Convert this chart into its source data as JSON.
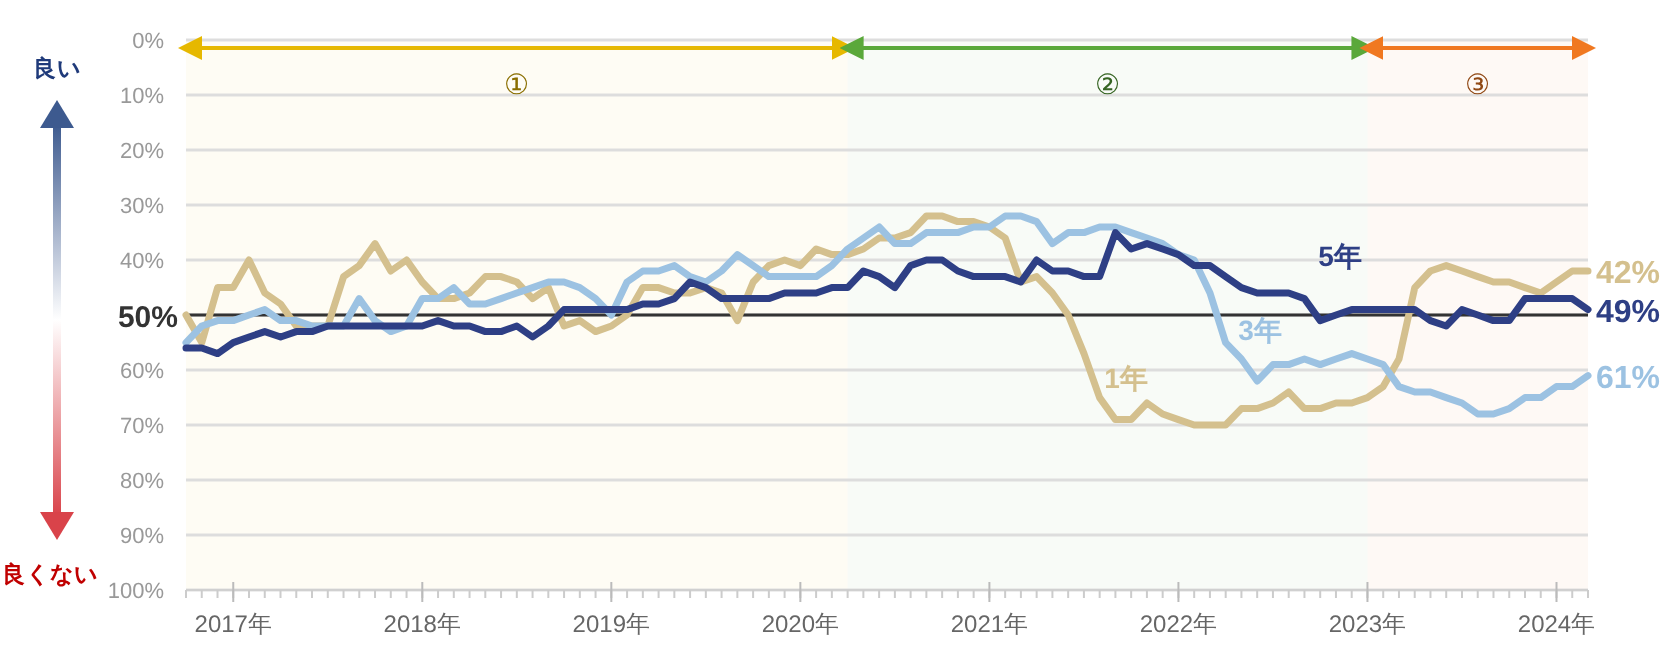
{
  "chart_data": {
    "type": "line",
    "x": [
      "2016-10",
      "2016-11",
      "2016-12",
      "2017-01",
      "2017-02",
      "2017-03",
      "2017-04",
      "2017-05",
      "2017-06",
      "2017-07",
      "2017-08",
      "2017-09",
      "2017-10",
      "2017-11",
      "2017-12",
      "2018-01",
      "2018-02",
      "2018-03",
      "2018-04",
      "2018-05",
      "2018-06",
      "2018-07",
      "2018-08",
      "2018-09",
      "2018-10",
      "2018-11",
      "2018-12",
      "2019-01",
      "2019-02",
      "2019-03",
      "2019-04",
      "2019-05",
      "2019-06",
      "2019-07",
      "2019-08",
      "2019-09",
      "2019-10",
      "2019-11",
      "2019-12",
      "2020-01",
      "2020-02",
      "2020-03",
      "2020-04",
      "2020-05",
      "2020-06",
      "2020-07",
      "2020-08",
      "2020-09",
      "2020-10",
      "2020-11",
      "2020-12",
      "2021-01",
      "2021-02",
      "2021-03",
      "2021-04",
      "2021-05",
      "2021-06",
      "2021-07",
      "2021-08",
      "2021-09",
      "2021-10",
      "2021-11",
      "2021-12",
      "2022-01",
      "2022-02",
      "2022-03",
      "2022-04",
      "2022-05",
      "2022-06",
      "2022-07",
      "2022-08",
      "2022-09",
      "2022-10",
      "2022-11",
      "2022-12",
      "2023-01",
      "2023-02",
      "2023-03",
      "2023-04",
      "2023-05",
      "2023-06",
      "2023-07",
      "2023-08",
      "2023-09",
      "2023-10",
      "2023-11",
      "2023-12",
      "2024-01",
      "2024-02",
      "2024-03"
    ],
    "series": [
      {
        "name": "1年",
        "color": "#d4c08e",
        "values": [
          50,
          55,
          45,
          45,
          40,
          46,
          48,
          52,
          52,
          52,
          43,
          41,
          37,
          42,
          40,
          44,
          47,
          47,
          46,
          43,
          43,
          44,
          47,
          45,
          52,
          51,
          53,
          52,
          50,
          45,
          45,
          46,
          46,
          45,
          46,
          51,
          44,
          41,
          40,
          41,
          38,
          39,
          39,
          38,
          36,
          36,
          35,
          32,
          32,
          33,
          33,
          34,
          36,
          44,
          43,
          46,
          50,
          57,
          65,
          69,
          69,
          66,
          68,
          69,
          70,
          70,
          70,
          67,
          67,
          66,
          64,
          67,
          67,
          66,
          66,
          65,
          63,
          58,
          45,
          42,
          41,
          42,
          43,
          44,
          44,
          45,
          46,
          44,
          42,
          42
        ],
        "value_labels": [
          null,
          null,
          null,
          null,
          null,
          null,
          null,
          null,
          null,
          null,
          null,
          null,
          null,
          null,
          null,
          null,
          null,
          null,
          null,
          null,
          null,
          null,
          null,
          null,
          null,
          null,
          null,
          null,
          null,
          null,
          null,
          null,
          null,
          null,
          null,
          null,
          null,
          null,
          null,
          null,
          null,
          null,
          null,
          null,
          null,
          null,
          null,
          null,
          null,
          null,
          null,
          null,
          null,
          null,
          null,
          null,
          null,
          null,
          null,
          null,
          null,
          null,
          null,
          null,
          null,
          null,
          null,
          null,
          null,
          null,
          null,
          null,
          null,
          null,
          null,
          null,
          null,
          null,
          null,
          null,
          null,
          null,
          null,
          null,
          null,
          null,
          null,
          null,
          null,
          "42%"
        ]
      },
      {
        "name": "3年",
        "color": "#9cc2e2",
        "values": [
          55,
          52,
          51,
          51,
          50,
          49,
          51,
          51,
          52,
          52,
          52,
          47,
          51,
          53,
          52,
          47,
          47,
          45,
          48,
          48,
          47,
          46,
          45,
          44,
          44,
          45,
          47,
          50,
          44,
          42,
          42,
          41,
          43,
          44,
          42,
          39,
          41,
          43,
          43,
          43,
          43,
          41,
          38,
          36,
          34,
          37,
          37,
          35,
          35,
          35,
          34,
          34,
          32,
          32,
          33,
          37,
          35,
          35,
          34,
          34,
          35,
          36,
          37,
          39,
          40,
          46,
          55,
          58,
          62,
          59,
          59,
          58,
          59,
          58,
          57,
          58,
          59,
          63,
          64,
          64,
          65,
          66,
          68,
          68,
          67,
          65,
          65,
          63,
          63,
          61
        ],
        "value_labels": [
          null,
          null,
          null,
          null,
          null,
          null,
          null,
          null,
          null,
          null,
          null,
          null,
          null,
          null,
          null,
          null,
          null,
          null,
          null,
          null,
          null,
          null,
          null,
          null,
          null,
          null,
          null,
          null,
          null,
          null,
          null,
          null,
          null,
          null,
          null,
          null,
          null,
          null,
          null,
          null,
          null,
          null,
          null,
          null,
          null,
          null,
          null,
          null,
          null,
          null,
          null,
          null,
          null,
          null,
          null,
          null,
          null,
          null,
          null,
          null,
          null,
          null,
          null,
          null,
          null,
          null,
          null,
          null,
          null,
          null,
          null,
          null,
          null,
          null,
          null,
          null,
          null,
          null,
          null,
          null,
          null,
          null,
          null,
          null,
          null,
          null,
          null,
          null,
          null,
          "61%"
        ]
      },
      {
        "name": "5年",
        "color": "#2e3f85",
        "values": [
          56,
          56,
          57,
          55,
          54,
          53,
          54,
          53,
          53,
          52,
          52,
          52,
          52,
          52,
          52,
          52,
          51,
          52,
          52,
          53,
          53,
          52,
          54,
          52,
          49,
          49,
          49,
          49,
          49,
          48,
          48,
          47,
          44,
          45,
          47,
          47,
          47,
          47,
          46,
          46,
          46,
          45,
          45,
          42,
          43,
          45,
          41,
          40,
          40,
          42,
          43,
          43,
          43,
          44,
          40,
          42,
          42,
          43,
          43,
          35,
          38,
          37,
          38,
          39,
          41,
          41,
          43,
          45,
          46,
          46,
          46,
          47,
          51,
          50,
          49,
          49,
          49,
          49,
          49,
          51,
          52,
          49,
          50,
          51,
          51,
          47,
          47,
          47,
          47,
          49
        ],
        "value_labels": [
          null,
          null,
          null,
          null,
          null,
          null,
          null,
          null,
          null,
          null,
          null,
          null,
          null,
          null,
          null,
          null,
          null,
          null,
          null,
          null,
          null,
          null,
          null,
          null,
          null,
          null,
          null,
          null,
          null,
          null,
          null,
          null,
          null,
          null,
          null,
          null,
          null,
          null,
          null,
          null,
          null,
          null,
          null,
          null,
          null,
          null,
          null,
          null,
          null,
          null,
          null,
          null,
          null,
          null,
          null,
          null,
          null,
          null,
          null,
          null,
          null,
          null,
          null,
          null,
          null,
          null,
          null,
          null,
          null,
          null,
          null,
          null,
          null,
          null,
          null,
          null,
          null,
          null,
          null,
          null,
          null,
          null,
          null,
          null,
          null,
          null,
          null,
          null,
          null,
          "49%"
        ]
      }
    ],
    "xlim": [
      "2016-10",
      "2024-03"
    ],
    "xticks": [
      {
        "value": "2017-01",
        "label": "2017年"
      },
      {
        "value": "2018-01",
        "label": "2018年"
      },
      {
        "value": "2019-01",
        "label": "2019年"
      },
      {
        "value": "2020-01",
        "label": "2020年"
      },
      {
        "value": "2021-01",
        "label": "2021年"
      },
      {
        "value": "2022-01",
        "label": "2022年"
      },
      {
        "value": "2023-01",
        "label": "2023年"
      },
      {
        "value": "2024-01",
        "label": "2024年"
      }
    ],
    "ylim": [
      100,
      0
    ],
    "yticks": [
      {
        "value": 0,
        "label": "0%"
      },
      {
        "value": 10,
        "label": "10%"
      },
      {
        "value": 20,
        "label": "20%"
      },
      {
        "value": 30,
        "label": "30%"
      },
      {
        "value": 40,
        "label": "40%"
      },
      {
        "value": 50,
        "label": "50%"
      },
      {
        "value": 60,
        "label": "60%"
      },
      {
        "value": 70,
        "label": "70%"
      },
      {
        "value": 80,
        "label": "80%"
      },
      {
        "value": 90,
        "label": "90%"
      },
      {
        "value": 100,
        "label": "100%"
      }
    ],
    "grid": "y",
    "ref_lines": [
      {
        "axis": "y",
        "value": 50,
        "color": "#333333"
      }
    ],
    "bands": [
      {
        "axis": "x",
        "from": "2016-10",
        "to": "2020-04",
        "label": "①",
        "color": "#e6b800"
      },
      {
        "axis": "x",
        "from": "2020-04",
        "to": "2023-01",
        "label": "②",
        "color": "#5aa83a"
      },
      {
        "axis": "x",
        "from": "2023-01",
        "to": "2024-03",
        "label": "③",
        "color": "#f07820"
      }
    ],
    "annotations": [
      "良い",
      "良くない"
    ]
  }
}
